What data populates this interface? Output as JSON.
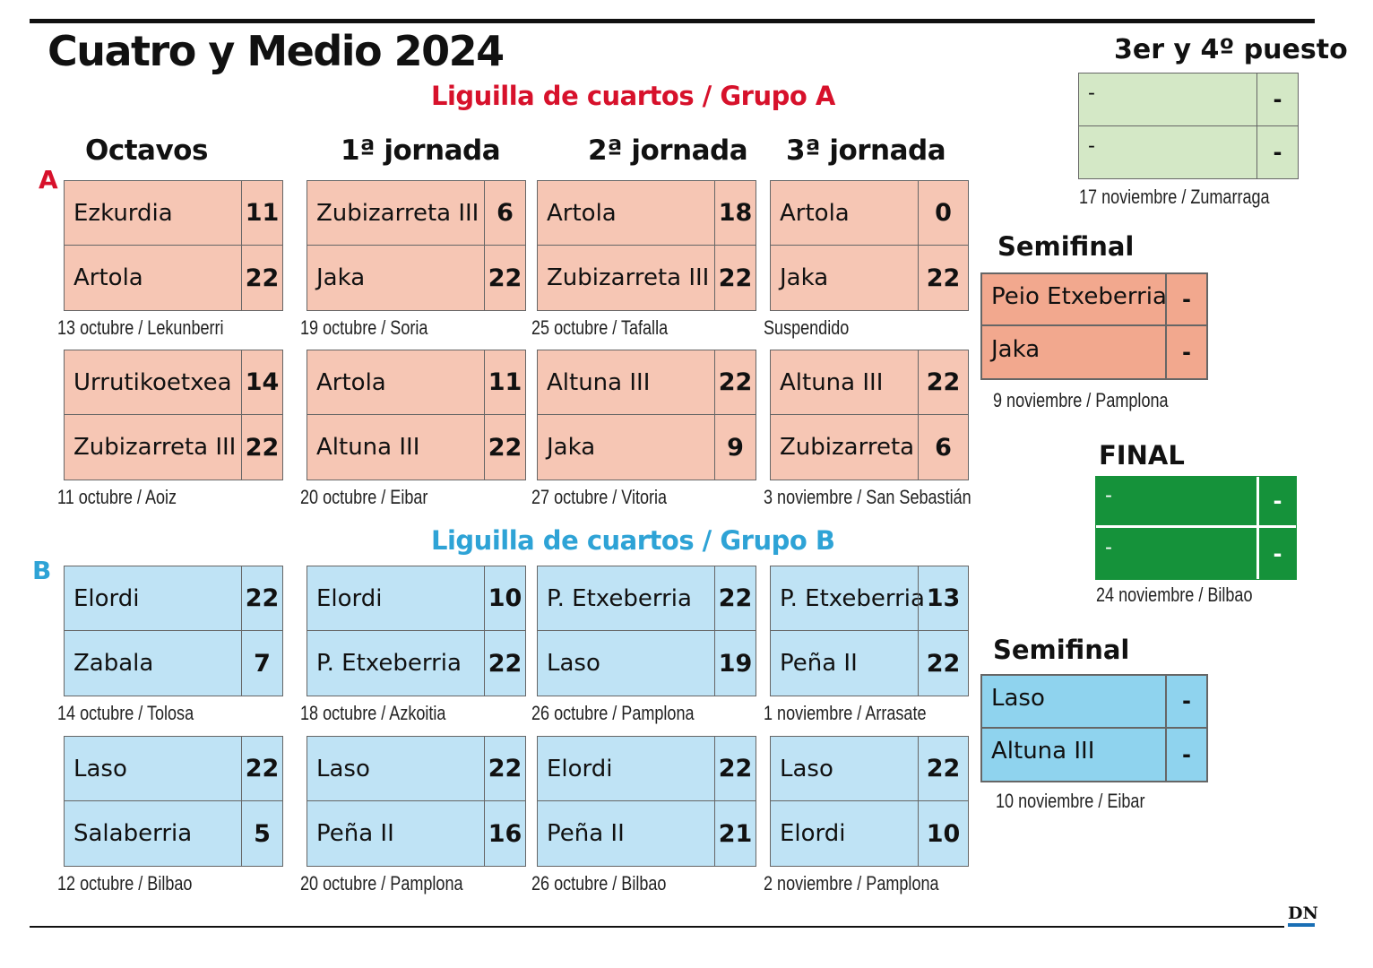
{
  "title": "Cuatro y Medio 2024",
  "group_a": {
    "title": "Liguilla de cuartos / Grupo A",
    "label": "A",
    "color": "#d7112b",
    "matches": [
      {
        "p1": "Ezkurdia",
        "s1": "11",
        "p2": "Artola",
        "s2": "22",
        "caption": "13 octubre / Lekunberri"
      },
      {
        "p1": "Zubizarreta III",
        "s1": "6",
        "p2": "Jaka",
        "s2": "22",
        "caption": "19 octubre / Soria"
      },
      {
        "p1": "Artola",
        "s1": "18",
        "p2": "Zubizarreta III",
        "s2": "22",
        "caption": "25 octubre / Tafalla"
      },
      {
        "p1": "Artola",
        "s1": "0",
        "p2": "Jaka",
        "s2": "22",
        "caption": "Suspendido"
      },
      {
        "p1": "Urrutikoetxea",
        "s1": "14",
        "p2": "Zubizarreta III",
        "s2": "22",
        "caption": "11 octubre / Aoiz"
      },
      {
        "p1": "Artola",
        "s1": "11",
        "p2": "Altuna III",
        "s2": "22",
        "caption": "20 octubre / Eibar"
      },
      {
        "p1": "Altuna III",
        "s1": "22",
        "p2": "Jaka",
        "s2": "9",
        "caption": "27 octubre / Vitoria"
      },
      {
        "p1": "Altuna III",
        "s1": "22",
        "p2": "Zubizarreta",
        "s2": "6",
        "caption": "3 noviembre / San Sebastián"
      }
    ]
  },
  "group_b": {
    "title": "Liguilla de cuartos / Grupo B",
    "label": "B",
    "color": "#2ea3d6",
    "matches": [
      {
        "p1": "Elordi",
        "s1": "22",
        "p2": "Zabala",
        "s2": "7",
        "caption": "14 octubre / Tolosa"
      },
      {
        "p1": "Elordi",
        "s1": "10",
        "p2": "P. Etxeberria",
        "s2": "22",
        "caption": "18 octubre / Azkoitia"
      },
      {
        "p1": "P. Etxeberria",
        "s1": "22",
        "p2": "Laso",
        "s2": "19",
        "caption": "26 octubre / Pamplona"
      },
      {
        "p1": "P. Etxeberria",
        "s1": "13",
        "p2": "Peña II",
        "s2": "22",
        "caption": "1 noviembre / Arrasate"
      },
      {
        "p1": "Laso",
        "s1": "22",
        "p2": "Salaberria",
        "s2": "5",
        "caption": "12 octubre / Bilbao"
      },
      {
        "p1": "Laso",
        "s1": "22",
        "p2": "Peña II",
        "s2": "16",
        "caption": "20 octubre / Pamplona"
      },
      {
        "p1": "Elordi",
        "s1": "22",
        "p2": "Peña II",
        "s2": "21",
        "caption": "26 octubre / Bilbao"
      },
      {
        "p1": "Laso",
        "s1": "22",
        "p2": "Elordi",
        "s2": "10",
        "caption": "2 noviembre / Pamplona"
      }
    ]
  },
  "columns": [
    "Octavos",
    "1ª jornada",
    "2ª jornada",
    "3ª jornada"
  ],
  "third_place": {
    "title": "3er y 4º puesto",
    "p1": "-",
    "s1": "-",
    "p2": "-",
    "s2": "-",
    "caption": "17 noviembre / Zumarraga"
  },
  "semifinal_a": {
    "title": "Semifinal",
    "p1": "Peio Etxeberria",
    "s1": "-",
    "p2": "Jaka",
    "s2": "-",
    "caption": "9 noviembre / Pamplona"
  },
  "final": {
    "title": "FINAL",
    "p1": "-",
    "s1": "-",
    "p2": "-",
    "s2": "-",
    "caption": "24 noviembre / Bilbao"
  },
  "semifinal_b": {
    "title": "Semifinal",
    "p1": "Laso",
    "s1": "-",
    "p2": "Altuna III",
    "s2": "-",
    "caption": "10 noviembre / Eibar"
  },
  "logo": "DN",
  "colors": {
    "pink": "#f6c6b4",
    "light_blue": "#bfe3f5",
    "semifinal_a": "#f2a88e",
    "semifinal_b": "#8fd3ee",
    "third_place": "#d4e8c6",
    "final": "#15923a"
  }
}
